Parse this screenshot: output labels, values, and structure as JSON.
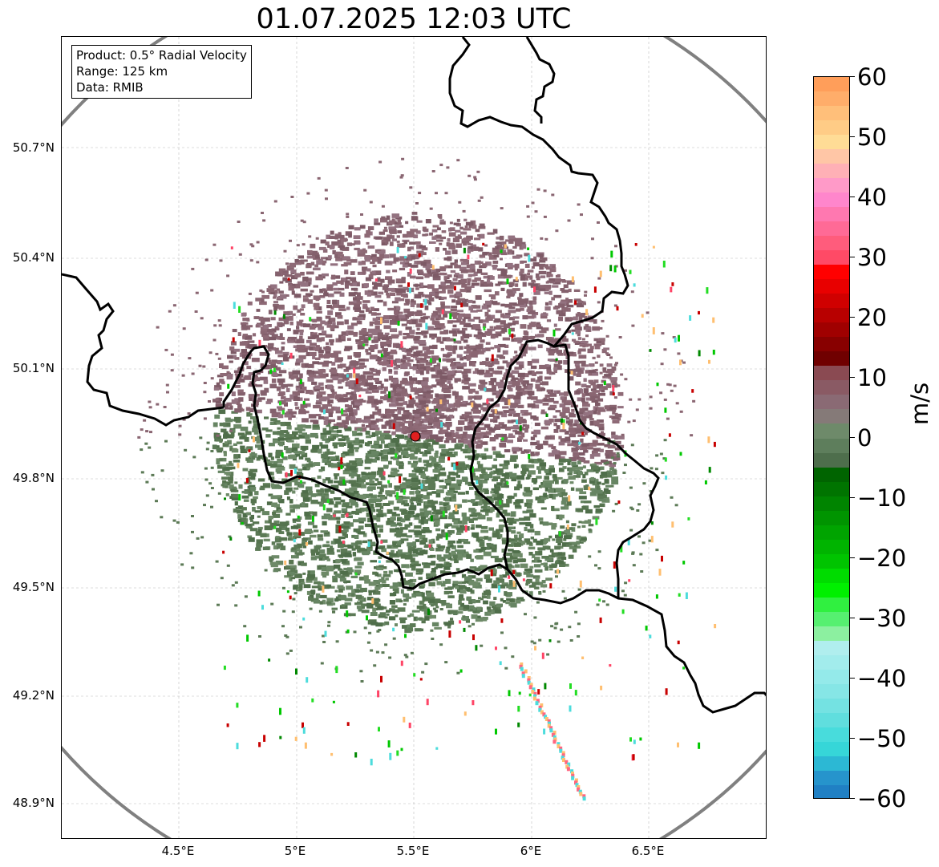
{
  "title": "01.07.2025 12:03 UTC",
  "info": {
    "product": "Product: 0.5° Radial Velocity",
    "range": "Range: 125 km",
    "data": "Data: RMIB"
  },
  "map": {
    "lon_range": [
      4.0,
      7.0
    ],
    "lat_range": [
      48.8,
      51.0
    ],
    "lat_ticks": [
      "50.7°N",
      "50.4°N",
      "50.1°N",
      "49.8°N",
      "49.5°N",
      "49.2°N",
      "48.9°N"
    ],
    "lon_ticks": [
      "4.5°E",
      "5°E",
      "5.5°E",
      "6°E",
      "6.5°E"
    ],
    "radar_site": {
      "lon": 5.5,
      "lat": 49.91
    },
    "range_ring_km": 125,
    "colors": {
      "approaching": "#5a7a55",
      "receding": "#8a6470",
      "border": "#000000",
      "ring": "#808080",
      "site": "#e02020"
    }
  },
  "colorbar": {
    "unit": "m/s",
    "vmin": -60,
    "vmax": 60,
    "tick_labels": [
      "60",
      "50",
      "40",
      "30",
      "20",
      "10",
      "0",
      "−10",
      "−20",
      "−30",
      "−40",
      "−50",
      "−60"
    ]
  }
}
